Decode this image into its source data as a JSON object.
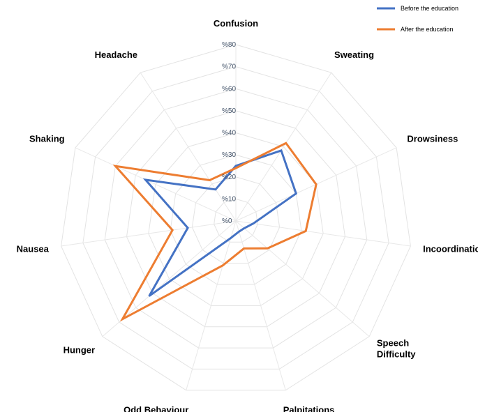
{
  "chart_data": {
    "type": "radar",
    "title": "",
    "categories": [
      "Confusion",
      "Sweating",
      "Drowsiness",
      "Incoordination",
      "Speech Difficulty",
      "Palpitations",
      "Odd Behaviour",
      "Hunger",
      "Nausea",
      "Shaking",
      "Headache"
    ],
    "ticks": [
      "%0",
      "%10",
      "%20",
      "%30",
      "%40",
      "%50",
      "%60",
      "%70",
      "%80"
    ],
    "rlim": [
      0,
      80
    ],
    "grid": true,
    "legend_position": "top-right",
    "series": [
      {
        "name": "Before the education",
        "color": "#4472c4",
        "values": [
          25,
          38,
          30,
          8,
          5,
          5,
          8,
          52,
          22,
          45,
          17
        ]
      },
      {
        "name": "After the education",
        "color": "#ed7d31",
        "values": [
          24,
          42,
          40,
          32,
          19,
          13,
          21,
          68,
          29,
          60,
          22
        ]
      }
    ]
  }
}
